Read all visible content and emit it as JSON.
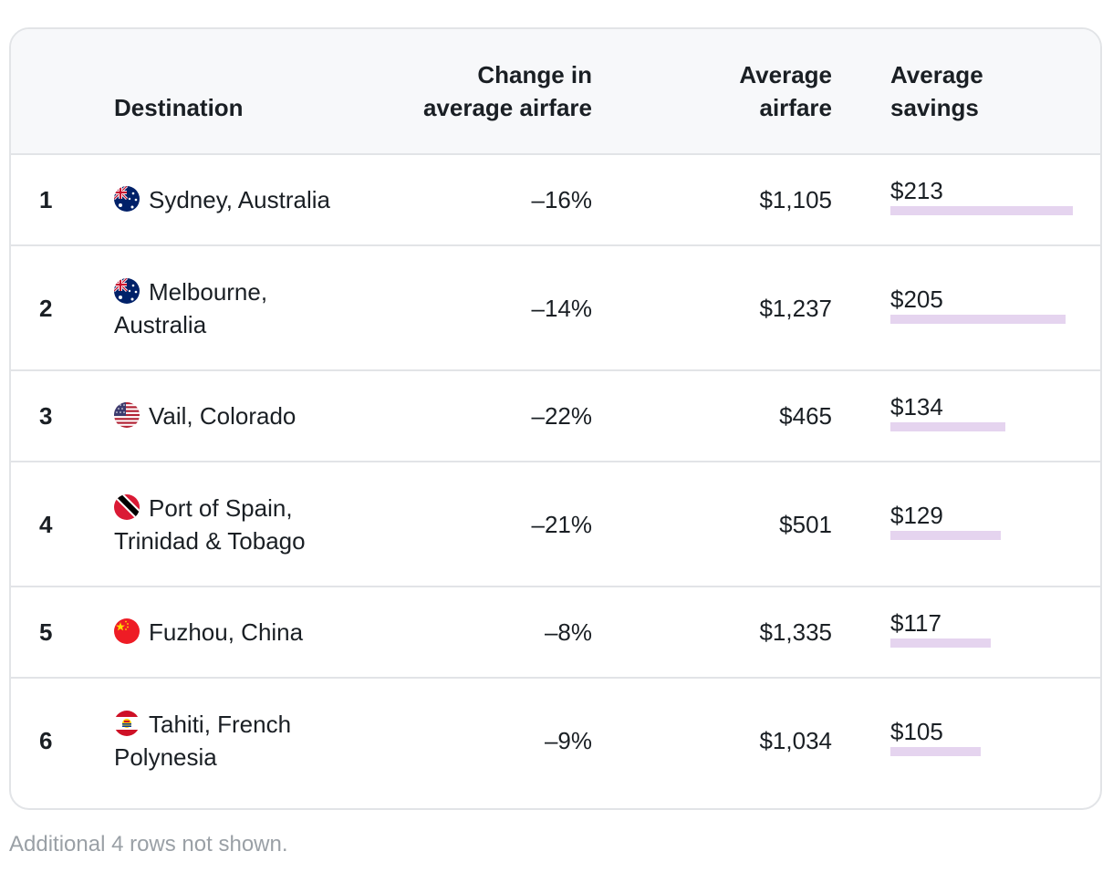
{
  "table": {
    "headers": {
      "rank": "",
      "destination": "Destination",
      "change": "Change in average airfare",
      "fare": "Average airfare",
      "savings": "Average savings"
    },
    "rows": [
      {
        "rank": "1",
        "flag": "australia-flag-icon",
        "destination": "Sydney, Australia",
        "change": "–16%",
        "fare": "$1,105",
        "savings": "$213",
        "savings_value": 213
      },
      {
        "rank": "2",
        "flag": "australia-flag-icon",
        "destination": "Melbourne, Australia",
        "change": "–14%",
        "fare": "$1,237",
        "savings": "$205",
        "savings_value": 205
      },
      {
        "rank": "3",
        "flag": "usa-flag-icon",
        "destination": "Vail, Colorado",
        "change": "–22%",
        "fare": "$465",
        "savings": "$134",
        "savings_value": 134
      },
      {
        "rank": "4",
        "flag": "trinidad-tobago-flag-icon",
        "destination": "Port of Spain, Trinidad & Tobago",
        "change": "–21%",
        "fare": "$501",
        "savings": "$129",
        "savings_value": 129
      },
      {
        "rank": "5",
        "flag": "china-flag-icon",
        "destination": "Fuzhou, China",
        "change": "–8%",
        "fare": "$1,335",
        "savings": "$117",
        "savings_value": 117
      },
      {
        "rank": "6",
        "flag": "french-polynesia-flag-icon",
        "destination": "Tahiti, French Polynesia",
        "change": "–9%",
        "fare": "$1,034",
        "savings": "$105",
        "savings_value": 105
      }
    ]
  },
  "footnote": "Additional 4 rows not shown.",
  "colors": {
    "bar": "#e5d4ef",
    "border": "#e2e4e7",
    "header_bg": "#f7f8fa",
    "footnote": "#9aa0a6"
  }
}
